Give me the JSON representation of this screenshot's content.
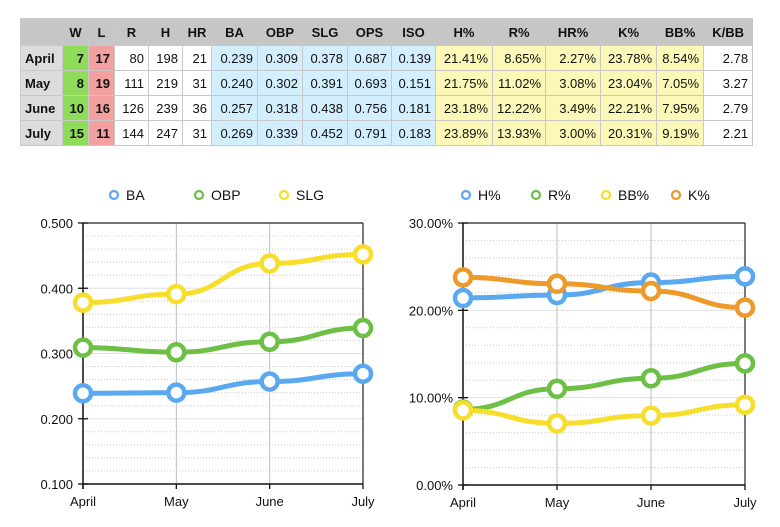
{
  "table": {
    "headers": [
      "",
      "W",
      "L",
      "R",
      "H",
      "HR",
      "BA",
      "OBP",
      "SLG",
      "OPS",
      "ISO",
      "H%",
      "R%",
      "HR%",
      "K%",
      "BB%",
      "K/BB"
    ],
    "rows": [
      [
        "April",
        "7",
        "17",
        "80",
        "198",
        "21",
        "0.239",
        "0.309",
        "0.378",
        "0.687",
        "0.139",
        "21.41%",
        "8.65%",
        "2.27%",
        "23.78%",
        "8.54%",
        "2.78"
      ],
      [
        "May",
        "8",
        "19",
        "111",
        "219",
        "31",
        "0.240",
        "0.302",
        "0.391",
        "0.693",
        "0.151",
        "21.75%",
        "11.02%",
        "3.08%",
        "23.04%",
        "7.05%",
        "3.27"
      ],
      [
        "June",
        "10",
        "16",
        "126",
        "239",
        "36",
        "0.257",
        "0.318",
        "0.438",
        "0.756",
        "0.181",
        "23.18%",
        "12.22%",
        "3.49%",
        "22.21%",
        "7.95%",
        "2.79"
      ],
      [
        "July",
        "15",
        "11",
        "144",
        "247",
        "31",
        "0.269",
        "0.339",
        "0.452",
        "0.791",
        "0.183",
        "23.89%",
        "13.93%",
        "3.00%",
        "20.31%",
        "9.19%",
        "2.21"
      ]
    ]
  },
  "chart_data": [
    {
      "type": "line",
      "categories": [
        "April",
        "May",
        "June",
        "July"
      ],
      "ylim": [
        0.1,
        0.5
      ],
      "yticks": [
        "0.100",
        "0.200",
        "0.300",
        "0.400",
        "0.500"
      ],
      "ytick_values": [
        0.1,
        0.2,
        0.3,
        0.4,
        0.5
      ],
      "legend": "top",
      "grid": true,
      "series": [
        {
          "name": "BA",
          "color": "#5aa9f0",
          "values": [
            0.239,
            0.24,
            0.257,
            0.269
          ]
        },
        {
          "name": "OBP",
          "color": "#6dbf45",
          "values": [
            0.309,
            0.302,
            0.318,
            0.339
          ]
        },
        {
          "name": "SLG",
          "color": "#f7de2c",
          "values": [
            0.378,
            0.391,
            0.438,
            0.452
          ]
        }
      ]
    },
    {
      "type": "line",
      "categories": [
        "April",
        "May",
        "June",
        "July"
      ],
      "ylim": [
        0,
        0.3
      ],
      "yticks": [
        "0.00%",
        "10.00%",
        "20.00%",
        "30.00%"
      ],
      "ytick_values": [
        0,
        0.1,
        0.2,
        0.3
      ],
      "legend": "top",
      "grid": true,
      "series": [
        {
          "name": "H%",
          "color": "#5aa9f0",
          "values": [
            0.2141,
            0.2175,
            0.2318,
            0.2389
          ]
        },
        {
          "name": "R%",
          "color": "#6dbf45",
          "values": [
            0.0865,
            0.1102,
            0.1222,
            0.1393
          ]
        },
        {
          "name": "BB%",
          "color": "#f7de2c",
          "values": [
            0.0854,
            0.0705,
            0.0795,
            0.0919
          ]
        },
        {
          "name": "K%",
          "color": "#ee9a2a",
          "values": [
            0.2378,
            0.2304,
            0.2221,
            0.2031
          ]
        }
      ]
    }
  ]
}
